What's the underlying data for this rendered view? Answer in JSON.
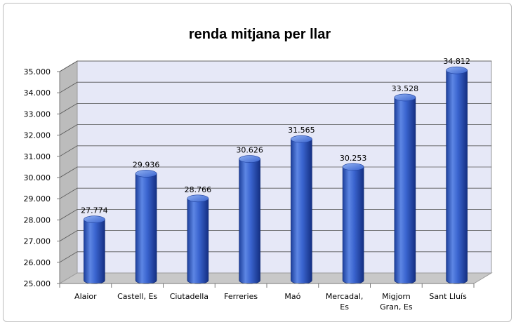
{
  "chart_data": {
    "type": "bar",
    "title": "renda mitjana per llar",
    "categories": [
      "Alaior",
      "Castell, Es",
      "Ciutadella",
      "Ferreries",
      "Maó",
      "Mercadal, Es",
      "Migjorn Gran, Es",
      "Sant Lluís"
    ],
    "category_lines": [
      [
        "Alaior"
      ],
      [
        "Castell, Es"
      ],
      [
        "Ciutadella"
      ],
      [
        "Ferreries"
      ],
      [
        "Maó"
      ],
      [
        "Mercadal,",
        "Es"
      ],
      [
        "Migjorn",
        "Gran, Es"
      ],
      [
        "Sant Lluís"
      ]
    ],
    "values": [
      27774,
      29936,
      28766,
      30626,
      31565,
      30253,
      33528,
      34812
    ],
    "value_labels": [
      "27.774",
      "29.936",
      "28.766",
      "30.626",
      "31.565",
      "30.253",
      "33.528",
      "34.812"
    ],
    "ylim": [
      25000,
      35000
    ],
    "yticks": [
      25000,
      26000,
      27000,
      28000,
      29000,
      30000,
      31000,
      32000,
      33000,
      34000,
      35000
    ],
    "ytick_labels": [
      "25.000",
      "26.000",
      "27.000",
      "28.000",
      "29.000",
      "30.000",
      "31.000",
      "32.000",
      "33.000",
      "34.000",
      "35.000"
    ],
    "xlabel": "",
    "ylabel": "",
    "grid": true,
    "legend": "none",
    "style": "3d-cylinder",
    "colors": {
      "bar_light": "#7b9fea",
      "bar_mid": "#3a64cf",
      "bar_dark": "#14338a",
      "wall": "#e6e8f7",
      "floor": "#c8c8c8",
      "side_wall": "#bcbcbc",
      "grid": "#555555"
    }
  }
}
